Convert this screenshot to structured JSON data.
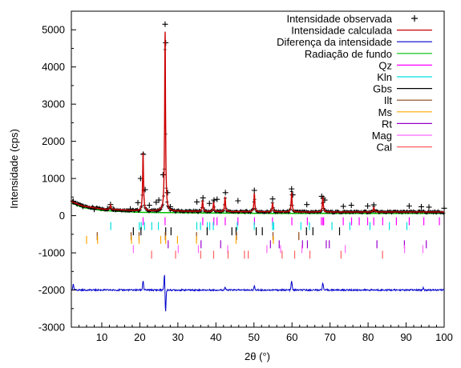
{
  "chart_data": {
    "type": "line",
    "title": "",
    "xlabel": "2θ (°)",
    "ylabel": "Intensidade (cps)",
    "xlim": [
      2,
      100
    ],
    "ylim": [
      -3000,
      5500
    ],
    "x_ticks": [
      10,
      20,
      30,
      40,
      50,
      60,
      70,
      80,
      90,
      100
    ],
    "y_ticks": [
      -3000,
      -2000,
      -1000,
      0,
      1000,
      2000,
      3000,
      4000,
      5000
    ],
    "legend_position": "top-right",
    "grid": false,
    "series": [
      {
        "name": "Intensidade observada",
        "color": "#000000",
        "marker": "+",
        "points": [
          [
            2.5,
            390
          ],
          [
            3.5,
            320
          ],
          [
            5,
            250
          ],
          [
            8,
            170
          ],
          [
            11.5,
            190
          ],
          [
            12.3,
            300
          ],
          [
            13,
            180
          ],
          [
            17.5,
            180
          ],
          [
            19.5,
            350
          ],
          [
            20.2,
            1000
          ],
          [
            20.9,
            1650
          ],
          [
            21.4,
            700
          ],
          [
            22.5,
            280
          ],
          [
            24.3,
            360
          ],
          [
            25.0,
            420
          ],
          [
            26.1,
            1100
          ],
          [
            26.65,
            5150
          ],
          [
            26.8,
            4650
          ],
          [
            27.3,
            620
          ],
          [
            28,
            240
          ],
          [
            35.0,
            370
          ],
          [
            36.6,
            480
          ],
          [
            38.3,
            330
          ],
          [
            39.5,
            420
          ],
          [
            40.3,
            440
          ],
          [
            42.5,
            620
          ],
          [
            45.8,
            400
          ],
          [
            50.1,
            680
          ],
          [
            54.9,
            450
          ],
          [
            59.9,
            720
          ],
          [
            60.2,
            560
          ],
          [
            63.9,
            300
          ],
          [
            67.8,
            520
          ],
          [
            68.2,
            470
          ],
          [
            68.6,
            420
          ],
          [
            73.5,
            250
          ],
          [
            75.6,
            280
          ],
          [
            79.9,
            260
          ],
          [
            81.5,
            290
          ],
          [
            90.8,
            260
          ],
          [
            94,
            240
          ],
          [
            96,
            230
          ],
          [
            100,
            200
          ]
        ]
      },
      {
        "name": "Intensidade calculada",
        "color": "#cc0000",
        "peaks": [
          [
            12.3,
            120
          ],
          [
            20.85,
            1550
          ],
          [
            26.64,
            4850
          ],
          [
            36.5,
            300
          ],
          [
            39.4,
            250
          ],
          [
            42.4,
            400
          ],
          [
            50.1,
            500
          ],
          [
            54.9,
            250
          ],
          [
            59.9,
            520
          ],
          [
            68.1,
            400
          ],
          [
            81.5,
            120
          ]
        ]
      },
      {
        "name": "Diferença da intensidade",
        "color": "#0000cc",
        "baseline": -2000,
        "features": [
          [
            2.5,
            150
          ],
          [
            20.85,
            250
          ],
          [
            26.5,
            500
          ],
          [
            26.75,
            -650
          ],
          [
            42.4,
            80
          ],
          [
            50.1,
            100
          ],
          [
            59.9,
            250
          ],
          [
            68.1,
            200
          ],
          [
            94.5,
            60
          ]
        ]
      },
      {
        "name": "Radiação de fundo",
        "color": "#00c000",
        "points": [
          [
            2,
            340
          ],
          [
            5,
            220
          ],
          [
            10,
            140
          ],
          [
            20,
            90
          ],
          [
            40,
            70
          ],
          [
            60,
            60
          ],
          [
            80,
            60
          ],
          [
            100,
            60
          ]
        ]
      }
    ],
    "reflection_markers": [
      {
        "name": "Qz",
        "color": "#ff00ff",
        "y": -150,
        "positions": [
          20.86,
          26.64,
          36.54,
          39.46,
          40.29,
          42.45,
          45.79,
          50.14,
          54.87,
          59.96,
          64.04,
          67.74,
          68.14,
          68.32,
          73.47,
          75.66,
          77.67,
          79.88,
          81.49,
          83.84,
          87.44,
          90.83,
          94.65,
          98.75
        ]
      },
      {
        "name": "Kln",
        "color": "#00e0e0",
        "y": -280,
        "positions": [
          12.36,
          19.86,
          20.38,
          21.24,
          23.14,
          24.88,
          34.98,
          35.95,
          37.74,
          38.37,
          39.31,
          45.61,
          50.07,
          54.9,
          55.2,
          62.34,
          64.6,
          70.5,
          75.2,
          80.5,
          85.6,
          90.2
        ]
      },
      {
        "name": "Gbs",
        "color": "#000000",
        "y": -420,
        "positions": [
          18.3,
          20.3,
          26.8,
          28.2,
          37.7,
          44.2,
          45.3,
          50.6,
          52.2,
          63.8,
          65.5,
          72.5
        ]
      },
      {
        "name": "Ilt",
        "color": "#8b4513",
        "y": -550,
        "positions": [
          8.8,
          17.7,
          19.8,
          26.7,
          34.9,
          45.4,
          55.0,
          61.8
        ]
      },
      {
        "name": "Ms",
        "color": "#ffa500",
        "y": -650,
        "positions": [
          6.0,
          8.9,
          17.8,
          19.8,
          25.5,
          26.8,
          29.9,
          34.9,
          45.3,
          55.1
        ]
      },
      {
        "name": "Rt",
        "color": "#9900cc",
        "y": -770,
        "positions": [
          27.45,
          36.09,
          41.25,
          54.33,
          56.64,
          62.76,
          64.05,
          69.01,
          69.8,
          82.33,
          89.55,
          95.3
        ]
      },
      {
        "name": "Mag",
        "color": "#ff66ff",
        "y": -900,
        "positions": [
          18.3,
          30.1,
          35.4,
          43.1,
          53.4,
          57.0,
          62.6,
          74.0,
          89.6,
          94.4
        ]
      },
      {
        "name": "Cal",
        "color": "#ff6060",
        "y": -1050,
        "positions": [
          23.1,
          29.4,
          36.0,
          39.4,
          43.2,
          47.5,
          48.5,
          57.4,
          60.7,
          64.7,
          72.9,
          83.8
        ]
      }
    ]
  }
}
